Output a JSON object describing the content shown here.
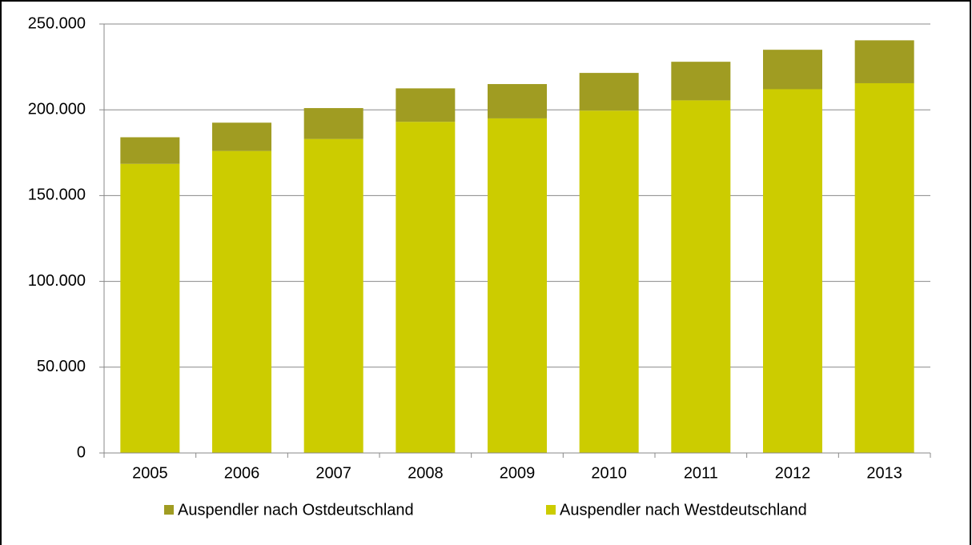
{
  "chart_data": {
    "type": "stacked_bar",
    "categories": [
      "2005",
      "2006",
      "2007",
      "2008",
      "2009",
      "2010",
      "2011",
      "2012",
      "2013"
    ],
    "series": [
      {
        "name": "Auspendler nach Ostdeutschland",
        "color": "#a09c22",
        "values": [
          15500,
          16500,
          18000,
          19500,
          20000,
          22000,
          22500,
          23000,
          25000
        ]
      },
      {
        "name": "Auspendler nach Westdeutschland",
        "color": "#cccc00",
        "values": [
          168500,
          176000,
          183000,
          193000,
          195000,
          199500,
          205500,
          212000,
          215500
        ]
      }
    ],
    "stack_order": "last-series-at-bottom",
    "ylim": [
      0,
      250000
    ],
    "yticks": [
      0,
      {
        "value": 50000,
        "label": "50.000"
      },
      {
        "value": 100000,
        "label": "100.000"
      },
      {
        "value": 150000,
        "label": "150.000"
      },
      {
        "value": 200000,
        "label": "200.000"
      },
      {
        "value": 250000,
        "label": "250.000"
      }
    ],
    "grid": true,
    "legend": "bottom"
  }
}
